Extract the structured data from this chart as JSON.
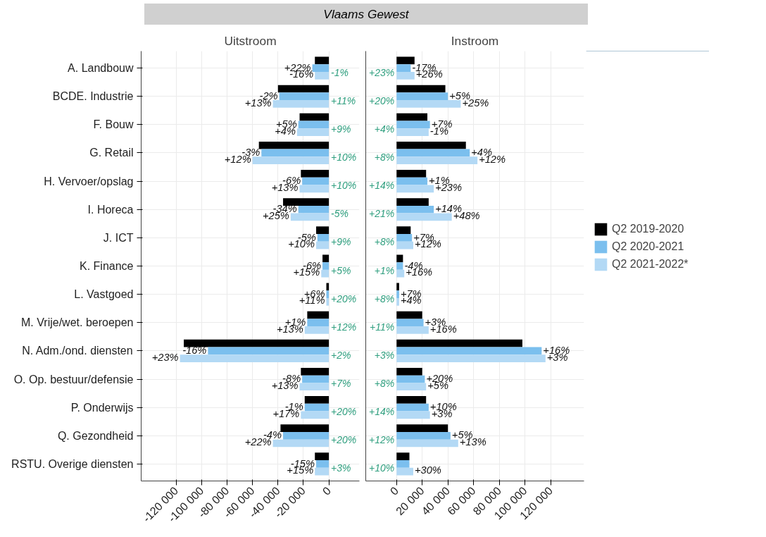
{
  "chart_data": [
    {
      "type": "bar",
      "orientation": "horizontal",
      "title": "Vlaams Gewest",
      "subtitle": "Uitstroom",
      "categories": [
        "A. Landbouw",
        "BCDE. Industrie",
        "F. Bouw",
        "G. Retail",
        "H. Vervoer/opslag",
        "I. Horeca",
        "J. ICT",
        "K. Finance",
        "L. Vastgoed",
        "M. Vrije/wet. beroepen",
        "N. Adm./ond. diensten",
        "O. Op. bestuur/defensie",
        "P. Onderwijs",
        "Q. Gezondheid",
        "RSTU. Overige diensten"
      ],
      "series": [
        {
          "color": "#000000",
          "values": [
            -11000,
            -40000,
            -23000,
            -55000,
            -22000,
            -36000,
            -10000,
            -5000,
            -2000,
            -17000,
            -114000,
            -22000,
            -19000,
            -38000,
            -11000
          ]
        },
        {
          "color": "#7bbfee",
          "values": [
            -13000,
            -39000,
            -24000,
            -53000,
            -21000,
            -24000,
            -9000,
            -5000,
            -2000,
            -17000,
            -95000,
            -21000,
            -19000,
            -36000,
            -10000
          ]
        },
        {
          "color": "#b3d9f5",
          "values": [
            -11000,
            -44000,
            -25000,
            -60000,
            -23000,
            -30000,
            -10000,
            -6000,
            -2000,
            -19000,
            -117000,
            -23000,
            -22000,
            -44000,
            -11000
          ]
        }
      ],
      "xlim": [
        -147500,
        24000
      ],
      "xticks": [
        {
          "value": -120000,
          "label": "-120 000"
        },
        {
          "value": -100000,
          "label": "-100 000"
        },
        {
          "value": -80000,
          "label": "-80 000"
        },
        {
          "value": -60000,
          "label": "-60 000"
        },
        {
          "value": -40000,
          "label": "-40 000"
        },
        {
          "value": -20000,
          "label": "-20 000"
        },
        0
      ],
      "grid": true,
      "annotations": [
        "-1%",
        "+11%",
        "+9%",
        "+10%",
        "+10%",
        "-5%",
        "+9%",
        "+5%",
        "+20%",
        "+12%",
        "+2%",
        "+7%",
        "+20%",
        "+20%",
        "+3%",
        "-16%",
        "+13%",
        "+4%",
        "+12%",
        "+13%",
        "+25%",
        "+10%",
        "+15%",
        "+11%",
        "+13%",
        "+23%",
        "+13%",
        "+17%",
        "+22%",
        "+15%",
        {
          "text": "+22%",
          "x": -13000,
          "y": "A. Landbouw"
        },
        {
          "text": "-2%",
          "x": -39000,
          "y": "BCDE. Industrie"
        },
        {
          "text": "+5%",
          "x": -24000,
          "y": "F. Bouw"
        },
        {
          "text": "-3%",
          "x": -53000,
          "y": "G. Retail"
        },
        {
          "text": "-6%",
          "x": -21000,
          "y": "H. Vervoer/opslag"
        },
        {
          "text": "-34%",
          "x": -24000,
          "y": "I. Horeca"
        },
        {
          "text": "-5%",
          "x": -9000,
          "y": "J. ICT"
        },
        {
          "text": "-6%",
          "x": -5000,
          "y": "K. Finance"
        },
        {
          "text": "+6%",
          "x": -2000,
          "y": "L. Vastgoed"
        },
        {
          "text": "+1%",
          "x": -17000,
          "y": "M. Vrije/wet. beroepen"
        },
        {
          "text": "-16%",
          "x": -95000,
          "y": "N. Adm./ond. diensten"
        },
        {
          "text": "-8%",
          "x": -21000,
          "y": "O. Op. bestuur/defensie"
        },
        {
          "text": "-1%",
          "x": -19000,
          "y": "P. Onderwijs"
        },
        {
          "text": "-4%",
          "x": -36000,
          "y": "Q. Gezondheid"
        },
        {
          "text": "-15%",
          "x": -10000,
          "y": "RSTU. Overige diensten"
        }
      ]
    },
    {
      "type": "bar",
      "orientation": "horizontal",
      "subtitle": "Instroom",
      "tick_labels": "x",
      "categories": [
        "A. Landbouw",
        "BCDE. Industrie",
        "F. Bouw",
        "G. Retail",
        "H. Vervoer/opslag",
        "I. Horeca",
        "J. ICT",
        "K. Finance",
        "L. Vastgoed",
        "M. Vrije/wet. beroepen",
        "N. Adm./ond. diensten",
        "O. Op. bestuur/defensie",
        "P. Onderwijs",
        "Q. Gezondheid",
        "RSTU. Overige diensten"
      ],
      "series": [
        {
          "name": "Q2 2019-2020",
          "color": "#000000",
          "values": [
            14000,
            38000,
            24000,
            54000,
            23000,
            25000,
            11000,
            5000,
            2000,
            20000,
            98000,
            20000,
            23000,
            40000,
            10000
          ]
        },
        {
          "name": "Q2 2020-2021",
          "color": "#7bbfee",
          "values": [
            11000,
            40000,
            26000,
            57000,
            24000,
            29000,
            12000,
            5000,
            2000,
            21000,
            113000,
            22000,
            25000,
            42000,
            10000
          ]
        },
        {
          "name": "Q2 2021-2022*",
          "color": "#b3d9f5",
          "values": [
            14000,
            50000,
            25000,
            63000,
            29000,
            43000,
            13000,
            6000,
            2000,
            25000,
            116000,
            23000,
            26000,
            48000,
            13000
          ]
        }
      ],
      "xlim": [
        -24000,
        146000
      ],
      "xticks": [
        0,
        {
          "value": 20000,
          "label": "20 000"
        },
        {
          "value": 40000,
          "label": "40 000"
        },
        {
          "value": 60000,
          "label": "60 000"
        },
        {
          "value": 80000,
          "label": "80 000"
        },
        {
          "value": 100000,
          "label": "100 000"
        },
        {
          "value": 120000,
          "label": "120 000"
        }
      ],
      "grid": true,
      "legend": "right",
      "annotations": [
        "+23%",
        "+20%",
        "+4%",
        "+8%",
        "+14%",
        "+21%",
        "+8%",
        "+1%",
        "+8%",
        "+11%",
        "+3%",
        "+8%",
        "+14%",
        "+12%",
        "+10%",
        "+26%",
        "+25%",
        "-1%",
        "+12%",
        "+23%",
        "+48%",
        "+12%",
        "+16%",
        "+4%",
        "+16%",
        "+3%",
        "+5%",
        "+3%",
        "+13%",
        "+30%",
        {
          "text": "-17%",
          "x": 11000,
          "y": "A. Landbouw"
        },
        {
          "text": "+5%",
          "x": 40000,
          "y": "BCDE. Industrie"
        },
        {
          "text": "+7%",
          "x": 26000,
          "y": "F. Bouw"
        },
        {
          "text": "+4%",
          "x": 57000,
          "y": "G. Retail"
        },
        {
          "text": "+1%",
          "x": 24000,
          "y": "H. Vervoer/opslag"
        },
        {
          "text": "+14%",
          "x": 29000,
          "y": "I. Horeca"
        },
        {
          "text": "+7%",
          "x": 12000,
          "y": "J. ICT"
        },
        {
          "text": "-4%",
          "x": 5000,
          "y": "K. Finance"
        },
        {
          "text": "+7%",
          "x": 2000,
          "y": "L. Vastgoed"
        },
        {
          "text": "+3%",
          "x": 21000,
          "y": "M. Vrije/wet. beroepen"
        },
        {
          "text": "+16%",
          "x": 113000,
          "y": "N. Adm./ond. diensten"
        },
        {
          "text": "+20%",
          "x": 22000,
          "y": "O. Op. bestuur/defensie"
        },
        {
          "text": "+10%",
          "x": 25000,
          "y": "P. Onderwijs"
        },
        {
          "text": "+5%",
          "x": 42000,
          "y": "Q. Gezondheid"
        }
      ]
    }
  ]
}
